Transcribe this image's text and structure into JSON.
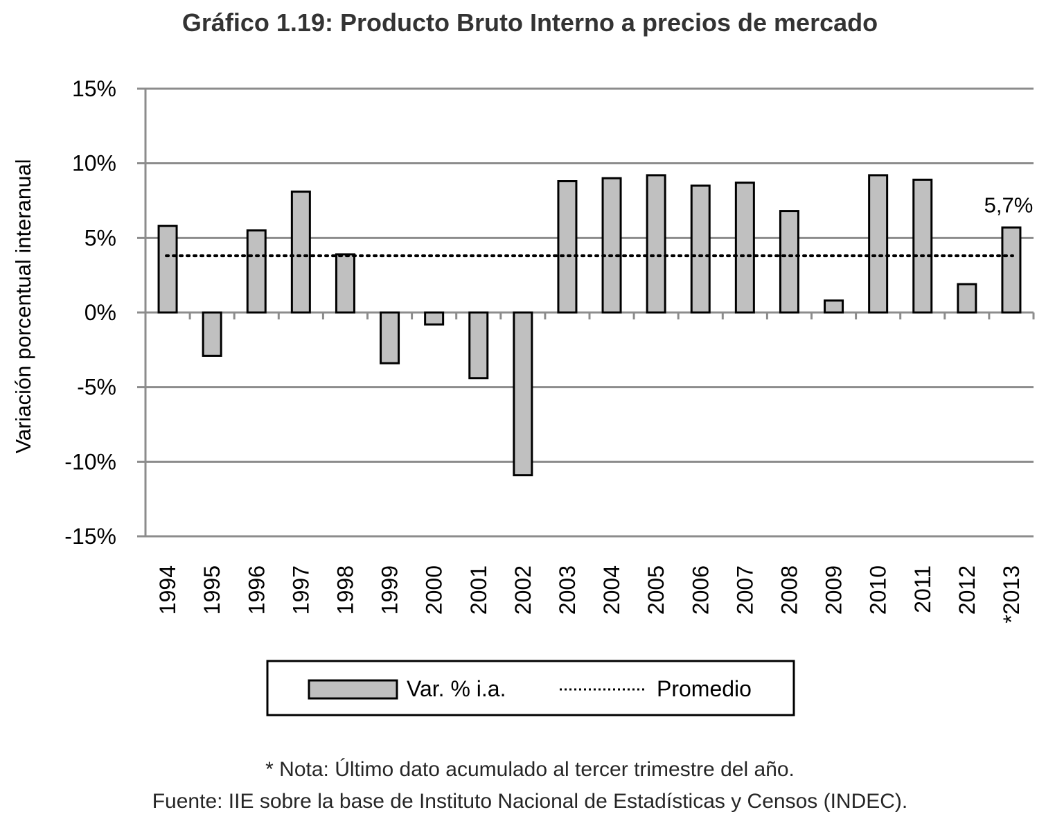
{
  "chart_data": {
    "type": "bar",
    "title": "Gráfico 1.19: Producto Bruto Interno a precios de mercado",
    "ylabel": "Variación porcentual interanual",
    "xlabel": "",
    "categories": [
      "1994",
      "1995",
      "1996",
      "1997",
      "1998",
      "1999",
      "2000",
      "2001",
      "2002",
      "2003",
      "2004",
      "2005",
      "2006",
      "2007",
      "2008",
      "2009",
      "2010",
      "2011",
      "2012",
      "*2013"
    ],
    "series": [
      {
        "name": "Var. % i.a.",
        "type": "bar",
        "color": "#c0c0c0",
        "values": [
          5.8,
          -2.9,
          5.5,
          8.1,
          3.9,
          -3.4,
          -0.8,
          -4.4,
          -10.9,
          8.8,
          9.0,
          9.2,
          8.5,
          8.7,
          6.8,
          0.8,
          9.2,
          8.9,
          1.9,
          5.7
        ]
      },
      {
        "name": "Promedio",
        "type": "line",
        "style": "dotted",
        "value": 3.8
      }
    ],
    "ylim": [
      -15,
      15
    ],
    "yticks": [
      15,
      10,
      5,
      0,
      -5,
      -10,
      -15
    ],
    "ytick_labels": [
      "15%",
      "10%",
      "5%",
      "0%",
      "-5%",
      "-10%",
      "-15%"
    ],
    "annotations": [
      {
        "category": "*2013",
        "text": "5,7%"
      }
    ],
    "grid": true,
    "legend": "bottom"
  },
  "notes": {
    "line1": "* Nota: Último dato acumulado al tercer trimestre del año.",
    "line2": "Fuente: IIE sobre la base de Instituto Nacional de Estadísticas y Censos (INDEC)."
  }
}
